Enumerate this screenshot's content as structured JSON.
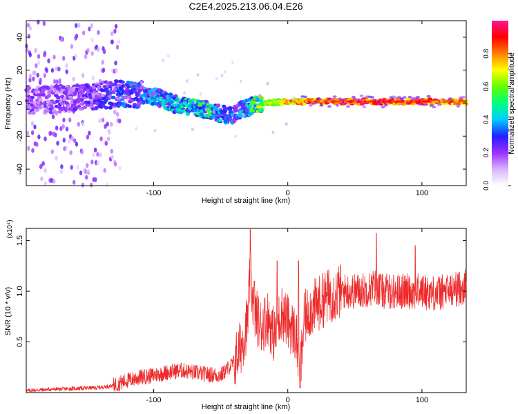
{
  "title": "C2E4.2025.213.06.04.E26",
  "chart_data": [
    {
      "type": "heatmap",
      "xlabel": "Height of straight line (km)",
      "ylabel": "Frequency (Hz)",
      "xlim": [
        -195,
        133
      ],
      "ylim": [
        -50,
        50
      ],
      "x_ticks": [
        -100,
        0,
        100
      ],
      "y_ticks": [
        -40,
        -20,
        0,
        20,
        40
      ],
      "colorbar": {
        "label": "Normalized spectral amplitude",
        "range": [
          0,
          1
        ],
        "ticks": [
          0.0,
          0.2,
          0.4,
          0.6,
          0.8
        ],
        "colors": [
          "#ffffff",
          "#d9b3ff",
          "#9b30ff",
          "#2020ff",
          "#00ccff",
          "#00ff80",
          "#60ff00",
          "#ffff00",
          "#ff8000",
          "#ff0000",
          "#ff1493"
        ]
      },
      "ridge": {
        "description_points": [
          {
            "x": -180,
            "freq": 2,
            "amp": 0.2
          },
          {
            "x": -150,
            "freq": 4,
            "amp": 0.22
          },
          {
            "x": -120,
            "freq": 6,
            "amp": 0.3
          },
          {
            "x": -100,
            "freq": 4,
            "amp": 0.35
          },
          {
            "x": -80,
            "freq": -2,
            "amp": 0.4
          },
          {
            "x": -60,
            "freq": -4,
            "amp": 0.45
          },
          {
            "x": -45,
            "freq": -8,
            "amp": 0.3
          },
          {
            "x": -35,
            "freq": -4,
            "amp": 0.35
          },
          {
            "x": -20,
            "freq": 0,
            "amp": 0.6
          },
          {
            "x": 0,
            "freq": 1,
            "amp": 0.8
          },
          {
            "x": 50,
            "freq": 1,
            "amp": 0.95
          },
          {
            "x": 100,
            "freq": 1,
            "amp": 0.9
          },
          {
            "x": 133,
            "freq": 1,
            "amp": 0.85
          }
        ]
      }
    },
    {
      "type": "line",
      "xlabel": "Height of straight line (km)",
      "ylabel": "SNR (10 * v/v)",
      "y_multiplier": "(x10⁴)",
      "xlim": [
        -195,
        133
      ],
      "ylim": [
        0,
        1.62
      ],
      "x_ticks": [
        -100,
        0,
        100
      ],
      "y_ticks": [
        0.5,
        1.0,
        1.5
      ],
      "color": "#ee2a2a",
      "series": [
        {
          "x": [
            -195,
            -180,
            -160,
            -140,
            -130,
            -120,
            -110,
            -100,
            -90,
            -80,
            -70,
            -60,
            -50,
            -40,
            -35,
            -30,
            -28,
            -25,
            -20,
            -15,
            -10,
            -5,
            0,
            5,
            7,
            9,
            12,
            15,
            20,
            30,
            40,
            50,
            60,
            66,
            70,
            80,
            90,
            100,
            110,
            120,
            133
          ],
          "y": [
            0.02,
            0.03,
            0.04,
            0.05,
            0.07,
            0.12,
            0.15,
            0.17,
            0.2,
            0.22,
            0.2,
            0.18,
            0.17,
            0.3,
            0.45,
            0.7,
            1.15,
            0.8,
            0.65,
            0.75,
            0.55,
            0.8,
            0.7,
            0.6,
            0.5,
            0.12,
            0.7,
            0.8,
            0.85,
            0.95,
            1.0,
            1.0,
            1.02,
            1.05,
            1.0,
            1.0,
            1.0,
            1.0,
            0.98,
            1.0,
            1.05
          ]
        }
      ],
      "spikes": [
        {
          "x": -28,
          "y": 1.62
        },
        {
          "x": -25,
          "y": 1.1
        },
        {
          "x": -8,
          "y": 1.3
        },
        {
          "x": 8,
          "y": 1.3
        },
        {
          "x": 9,
          "y": 0.05
        },
        {
          "x": 66,
          "y": 1.57
        },
        {
          "x": 95,
          "y": 1.45
        }
      ]
    }
  ]
}
